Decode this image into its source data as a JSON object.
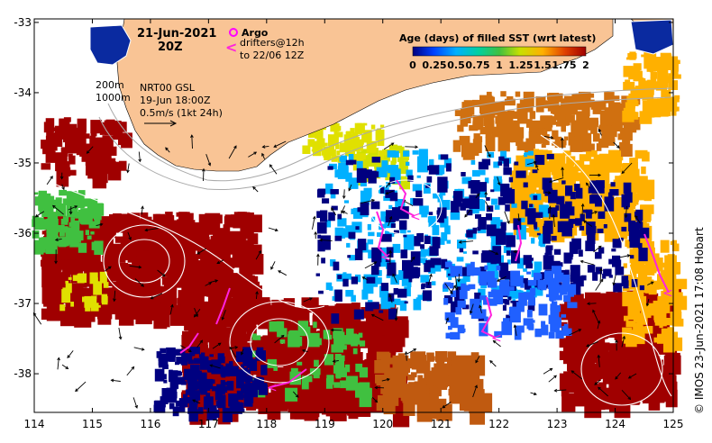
{
  "header": {
    "date": "21-Jun-2021",
    "time": "20Z"
  },
  "legend": {
    "argo_label": "Argo",
    "drifters_label": "drifters@12h",
    "drifters_window": "to 22/06 12Z",
    "depth_200": "200m",
    "depth_1000": "1000m",
    "gsl_source": "NRT00 GSL",
    "gsl_time": "19-Jun 18:00Z",
    "velocity_scale": "0.5m/s (1kt 24h)"
  },
  "colorbar": {
    "title": "Age (days) of filled SST (wrt latest)",
    "labels": [
      "0",
      "0.25",
      "0.5",
      "0.75",
      "1",
      "1.25",
      "1.5",
      "1.75",
      "2"
    ],
    "min": 0,
    "max": 2
  },
  "axes": {
    "lon_ticks": [
      "114",
      "115",
      "116",
      "117",
      "118",
      "119",
      "120",
      "121",
      "122",
      "123",
      "124",
      "125"
    ],
    "lat_ticks": [
      "-33",
      "-34",
      "-35",
      "-36",
      "-37",
      "-38"
    ],
    "lon_range": [
      114,
      125
    ],
    "lat_range": [
      -38.55,
      -32.95
    ]
  },
  "credit": "© IMOS 23-Jun-2021 17:08 Hobart",
  "colors": {
    "land": "#f9c495",
    "argo": "#ff00ff",
    "drifter": "#ff22dd",
    "age_0": "#000080",
    "age_0_5": "#00b0ff",
    "age_1": "#40c040",
    "age_1_5": "#ffb000",
    "age_2": "#a00000"
  }
}
